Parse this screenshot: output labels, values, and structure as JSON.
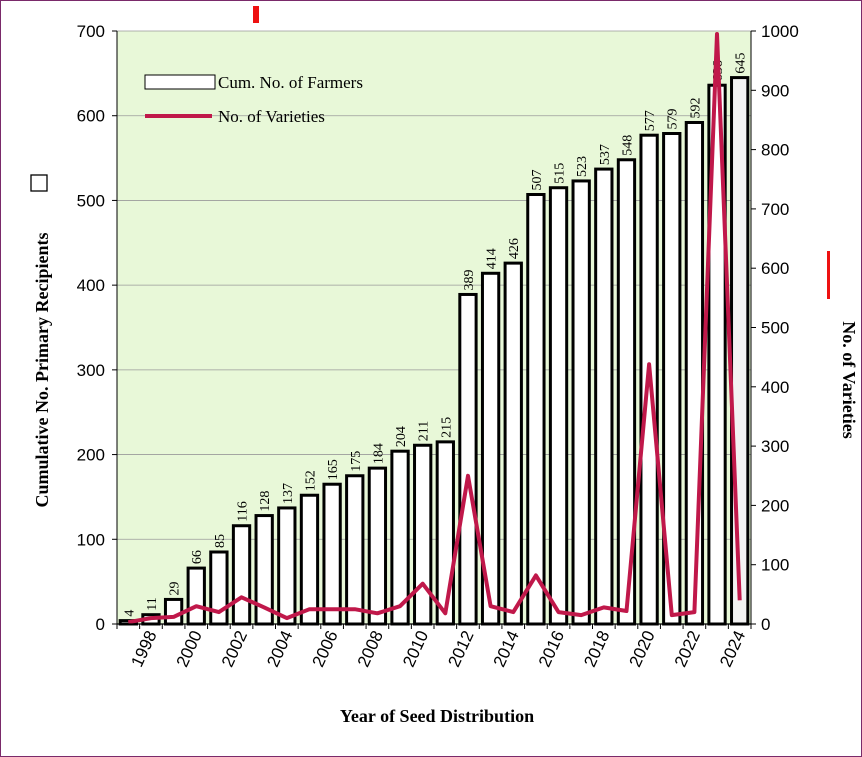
{
  "chart_data": {
    "type": "bar",
    "categories": [
      "1997",
      "1998",
      "1999",
      "2000",
      "2001",
      "2002",
      "2003",
      "2004",
      "2005",
      "2006",
      "2007",
      "2008",
      "2009",
      "2010",
      "2011",
      "2012",
      "2013",
      "2014",
      "2015",
      "2016",
      "2017",
      "2018",
      "2019",
      "2020",
      "2021",
      "2022",
      "2023",
      "2024"
    ],
    "x_tick_labels": [
      "1998",
      "2000",
      "2002",
      "2004",
      "2006",
      "2008",
      "2010",
      "2012",
      "2014",
      "2016",
      "2018",
      "2020",
      "2022",
      "2024"
    ],
    "series": [
      {
        "name": "Cum. No. of Farmers",
        "type": "bar",
        "axis": "left",
        "values": [
          4,
          11,
          29,
          66,
          85,
          116,
          128,
          137,
          152,
          165,
          175,
          184,
          204,
          211,
          215,
          389,
          414,
          426,
          507,
          515,
          523,
          537,
          548,
          577,
          579,
          592,
          636,
          645
        ]
      },
      {
        "name": "No. of Varieties",
        "type": "line",
        "axis": "right",
        "values": [
          3,
          10,
          12,
          30,
          20,
          45,
          28,
          10,
          25,
          25,
          25,
          18,
          30,
          68,
          18,
          250,
          30,
          20,
          82,
          20,
          15,
          28,
          22,
          438,
          15,
          20,
          995,
          40
        ]
      }
    ],
    "xlabel": "Year of Seed Distribution",
    "ylabel": "Cumulative No. Primary Recipients",
    "ylabel_right": "No. of Varieties",
    "ylim": [
      0,
      700
    ],
    "ylim_right": [
      0,
      1000
    ],
    "yticks": [
      0,
      100,
      200,
      300,
      400,
      500,
      600,
      700
    ],
    "yticks_right": [
      0,
      100,
      200,
      300,
      400,
      500,
      600,
      700,
      800,
      900,
      1000
    ],
    "legend_position": "top-left",
    "grid": true,
    "colors": {
      "plot_background": "#e8f8d8",
      "bar_fill": "#ffffff",
      "bar_stroke": "#000000",
      "line": "#c0184a",
      "gridline": "#9a9a9a",
      "frame": "#7a2a6a",
      "marker_red": "#ee1111"
    }
  }
}
